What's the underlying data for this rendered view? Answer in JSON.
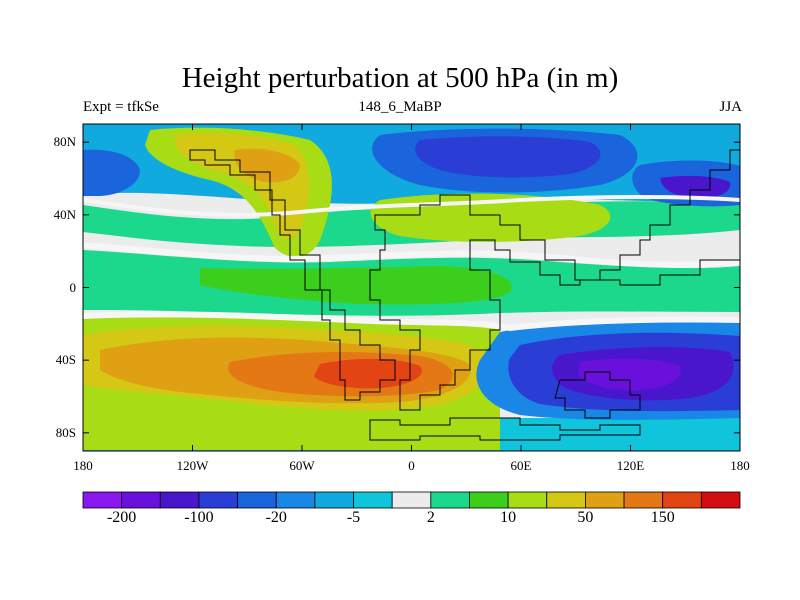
{
  "title": "Height perturbation at 500 hPa (in m)",
  "subtitle_left": "Expt = tfkSe",
  "subtitle_center": "148_6_MaBP",
  "subtitle_right": "JJA",
  "y_ticks": [
    {
      "label": "80N",
      "lat": 80
    },
    {
      "label": "40N",
      "lat": 40
    },
    {
      "label": "0",
      "lat": 0
    },
    {
      "label": "40S",
      "lat": -40
    },
    {
      "label": "80S",
      "lat": -80
    }
  ],
  "x_ticks": [
    {
      "label": "180",
      "lon": -180
    },
    {
      "label": "120W",
      "lon": -120
    },
    {
      "label": "60W",
      "lon": -60
    },
    {
      "label": "0",
      "lon": 0
    },
    {
      "label": "60E",
      "lon": 60
    },
    {
      "label": "120E",
      "lon": 120
    },
    {
      "label": "180",
      "lon": 180
    }
  ],
  "colorbar": {
    "colors": [
      "#8a18ee",
      "#6a10dc",
      "#4a16cc",
      "#2a3ed6",
      "#1a64dc",
      "#1a86e6",
      "#10aade",
      "#10c4dc",
      "#ececec",
      "#1cd88c",
      "#3cce1c",
      "#a8dc14",
      "#d4c814",
      "#e0a014",
      "#e47814",
      "#e24414",
      "#d40e10"
    ],
    "labels": [
      {
        "text": "-200",
        "boundary": 1
      },
      {
        "text": "-100",
        "boundary": 3
      },
      {
        "text": "-20",
        "boundary": 5
      },
      {
        "text": "-5",
        "boundary": 7
      },
      {
        "text": "2",
        "boundary": 9
      },
      {
        "text": "10",
        "boundary": 11
      },
      {
        "text": "50",
        "boundary": 13
      },
      {
        "text": "150",
        "boundary": 15
      }
    ]
  }
}
